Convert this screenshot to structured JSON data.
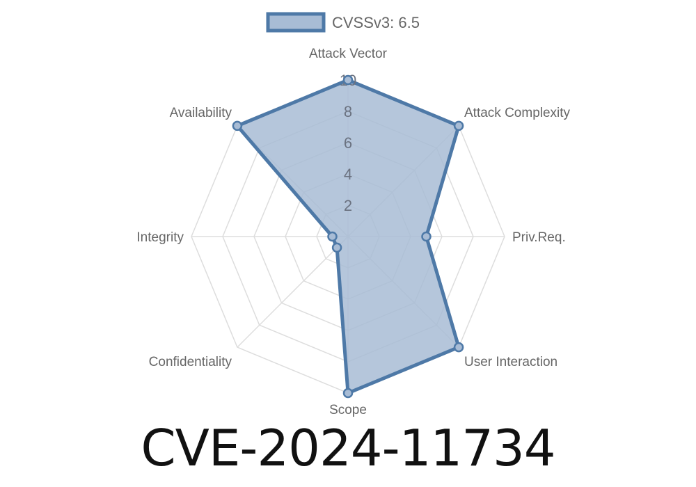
{
  "chart_data": {
    "type": "radar",
    "axes": [
      "Attack Vector",
      "Attack Complexity",
      "Priv.Req.",
      "User Interaction",
      "Scope",
      "Confidentiality",
      "Integrity",
      "Availability"
    ],
    "series": [
      {
        "name": "CVSSv3: 6.5",
        "values": [
          10,
          10,
          5,
          10,
          10,
          1,
          1,
          10
        ]
      }
    ],
    "rlim": [
      0,
      10
    ],
    "ticks": [
      "2",
      "4",
      "6",
      "8",
      "10"
    ],
    "tick_values": [
      2,
      4,
      6,
      8,
      10
    ],
    "legend_position": "top",
    "grid": true,
    "colors": {
      "stroke": "#4e79a7",
      "fill": "#a8bcd5",
      "grid": "#dddddd",
      "tick": "#6b7280",
      "label": "#666666"
    }
  },
  "title": "CVE-2024-11734"
}
